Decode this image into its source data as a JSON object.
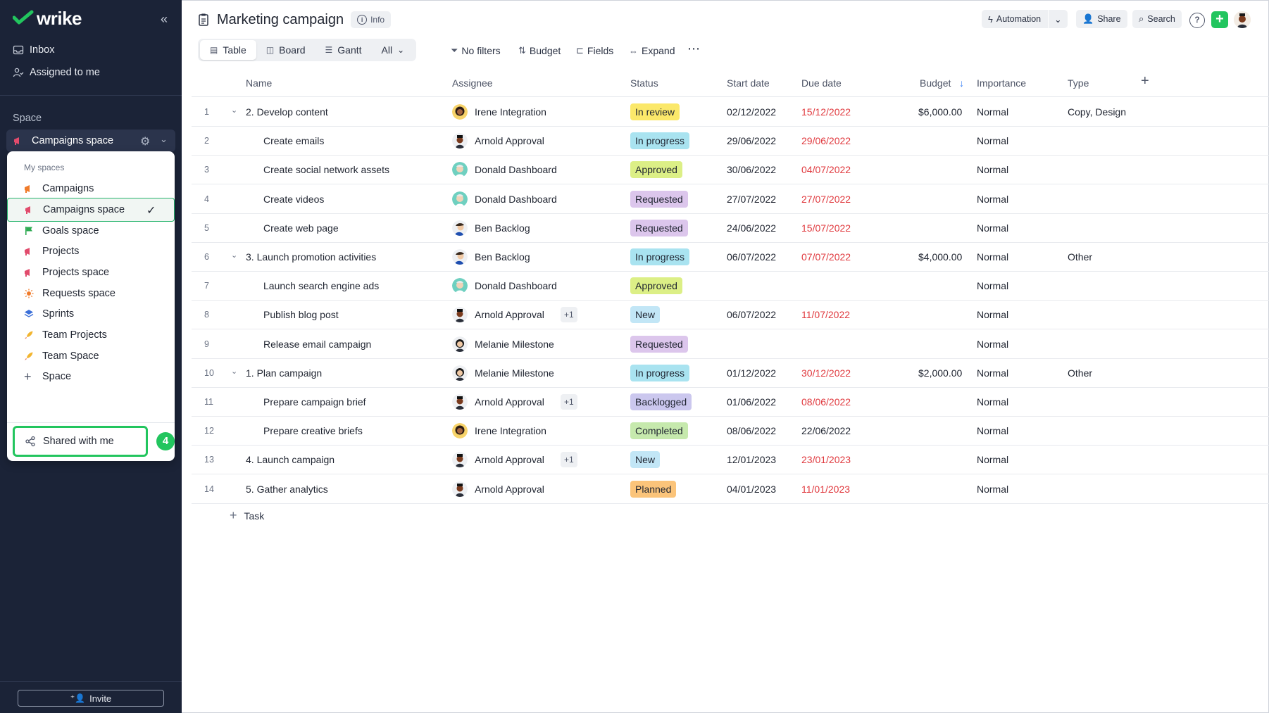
{
  "app": {
    "name": "wrike"
  },
  "sidebar": {
    "nav": [
      {
        "label": "Inbox",
        "icon": "inbox-icon"
      },
      {
        "label": "Assigned to me",
        "icon": "people-icon"
      }
    ],
    "space_section_label": "Space",
    "current_space": "Campaigns space",
    "invite_label": "Invite"
  },
  "dropdown": {
    "header": "My spaces",
    "items": [
      {
        "label": "Campaigns",
        "icon": "megaphone-icon",
        "color": "#f07b2a"
      },
      {
        "label": "Campaigns space",
        "icon": "megaphone-icon",
        "color": "#e14b6c",
        "selected": true
      },
      {
        "label": "Goals space",
        "icon": "flag-icon",
        "color": "#2eaa52"
      },
      {
        "label": "Projects",
        "icon": "megaphone-icon",
        "color": "#e14b6c"
      },
      {
        "label": "Projects space",
        "icon": "megaphone-icon",
        "color": "#e14b6c"
      },
      {
        "label": "Requests space",
        "icon": "sun-icon",
        "color": "#f07b2a"
      },
      {
        "label": "Sprints",
        "icon": "layers-icon",
        "color": "#3b6fd8"
      },
      {
        "label": "Team Projects",
        "icon": "rocket-icon",
        "color": "#f2b530"
      },
      {
        "label": "Team Space",
        "icon": "rocket-icon",
        "color": "#f2b530"
      },
      {
        "label": "Space",
        "icon": "plus-icon",
        "color": "#50576a"
      }
    ],
    "shared_label": "Shared with me",
    "step_badge": "4"
  },
  "header": {
    "title": "Marketing campaign",
    "info_label": "Info",
    "automation_label": "Automation",
    "share_label": "Share",
    "search_label": "Search"
  },
  "toolbar": {
    "views": [
      "Table",
      "Board",
      "Gantt",
      "All"
    ],
    "active_view": "Table",
    "filters_label": "No filters",
    "sort_label": "Budget",
    "fields_label": "Fields",
    "expand_label": "Expand"
  },
  "table": {
    "columns": [
      "Name",
      "Assignee",
      "Status",
      "Start date",
      "Due date",
      "Budget",
      "Importance",
      "Type"
    ],
    "rows": [
      {
        "n": "1",
        "name": "2. Develop content",
        "parent": true,
        "indent": false,
        "assignee": "Irene Integration",
        "av": "irene",
        "extra": "",
        "status": "In review",
        "start": "02/12/2022",
        "due": "15/12/2022",
        "due_red": true,
        "budget": "$6,000.00",
        "importance": "Normal",
        "type": "Copy, Design"
      },
      {
        "n": "2",
        "name": "Create emails",
        "parent": false,
        "indent": true,
        "assignee": "Arnold Approval",
        "av": "arnold",
        "extra": "",
        "status": "In progress",
        "start": "29/06/2022",
        "due": "29/06/2022",
        "due_red": true,
        "budget": "",
        "importance": "Normal",
        "type": ""
      },
      {
        "n": "3",
        "name": "Create social network assets",
        "parent": false,
        "indent": true,
        "assignee": "Donald Dashboard",
        "av": "donald",
        "extra": "",
        "status": "Approved",
        "start": "30/06/2022",
        "due": "04/07/2022",
        "due_red": true,
        "budget": "",
        "importance": "Normal",
        "type": ""
      },
      {
        "n": "4",
        "name": "Create videos",
        "parent": false,
        "indent": true,
        "assignee": "Donald Dashboard",
        "av": "donald",
        "extra": "",
        "status": "Requested",
        "start": "27/07/2022",
        "due": "27/07/2022",
        "due_red": true,
        "budget": "",
        "importance": "Normal",
        "type": ""
      },
      {
        "n": "5",
        "name": "Create web page",
        "parent": false,
        "indent": true,
        "assignee": "Ben Backlog",
        "av": "ben",
        "extra": "",
        "status": "Requested",
        "start": "24/06/2022",
        "due": "15/07/2022",
        "due_red": true,
        "budget": "",
        "importance": "Normal",
        "type": ""
      },
      {
        "n": "6",
        "name": "3. Launch promotion activities",
        "parent": true,
        "indent": false,
        "assignee": "Ben Backlog",
        "av": "ben",
        "extra": "",
        "status": "In progress",
        "start": "06/07/2022",
        "due": "07/07/2022",
        "due_red": true,
        "budget": "$4,000.00",
        "importance": "Normal",
        "type": "Other"
      },
      {
        "n": "7",
        "name": "Launch search engine ads",
        "parent": false,
        "indent": true,
        "assignee": "Donald Dashboard",
        "av": "donald",
        "extra": "",
        "status": "Approved",
        "start": "",
        "due": "",
        "due_red": false,
        "budget": "",
        "importance": "Normal",
        "type": ""
      },
      {
        "n": "8",
        "name": "Publish blog post",
        "parent": false,
        "indent": true,
        "assignee": "Arnold Approval",
        "av": "arnold",
        "extra": "+1",
        "status": "New",
        "start": "06/07/2022",
        "due": "11/07/2022",
        "due_red": true,
        "budget": "",
        "importance": "Normal",
        "type": ""
      },
      {
        "n": "9",
        "name": "Release email campaign",
        "parent": false,
        "indent": true,
        "assignee": "Melanie Milestone",
        "av": "melanie",
        "extra": "",
        "status": "Requested",
        "start": "",
        "due": "",
        "due_red": false,
        "budget": "",
        "importance": "Normal",
        "type": ""
      },
      {
        "n": "10",
        "name": "1. Plan campaign",
        "parent": true,
        "indent": false,
        "assignee": "Melanie Milestone",
        "av": "melanie",
        "extra": "",
        "status": "In progress",
        "start": "01/12/2022",
        "due": "30/12/2022",
        "due_red": true,
        "budget": "$2,000.00",
        "importance": "Normal",
        "type": "Other"
      },
      {
        "n": "11",
        "name": "Prepare campaign brief",
        "parent": false,
        "indent": true,
        "assignee": "Arnold Approval",
        "av": "arnold",
        "extra": "+1",
        "status": "Backlogged",
        "start": "01/06/2022",
        "due": "08/06/2022",
        "due_red": true,
        "budget": "",
        "importance": "Normal",
        "type": ""
      },
      {
        "n": "12",
        "name": "Prepare creative briefs",
        "parent": false,
        "indent": true,
        "assignee": "Irene Integration",
        "av": "irene",
        "extra": "",
        "status": "Completed",
        "start": "08/06/2022",
        "due": "22/06/2022",
        "due_red": false,
        "budget": "",
        "importance": "Normal",
        "type": ""
      },
      {
        "n": "13",
        "name": "4. Launch campaign",
        "parent": false,
        "indent": false,
        "assignee": "Arnold Approval",
        "av": "arnold",
        "extra": "+1",
        "status": "New",
        "start": "12/01/2023",
        "due": "23/01/2023",
        "due_red": true,
        "budget": "",
        "importance": "Normal",
        "type": ""
      },
      {
        "n": "14",
        "name": "5. Gather analytics",
        "parent": false,
        "indent": false,
        "assignee": "Arnold Approval",
        "av": "arnold",
        "extra": "",
        "status": "Planned",
        "start": "04/01/2023",
        "due": "11/01/2023",
        "due_red": true,
        "budget": "",
        "importance": "Normal",
        "type": ""
      }
    ],
    "add_task_label": "Task"
  },
  "status_colors": {
    "In review": "#fbe86a",
    "In progress": "#a9e3f0",
    "Approved": "#dcef86",
    "Requested": "#dcc6ec",
    "New": "#c2e6f6",
    "Backlogged": "#cbc7ee",
    "Completed": "#c6e9ad",
    "Planned": "#fbc47a"
  }
}
